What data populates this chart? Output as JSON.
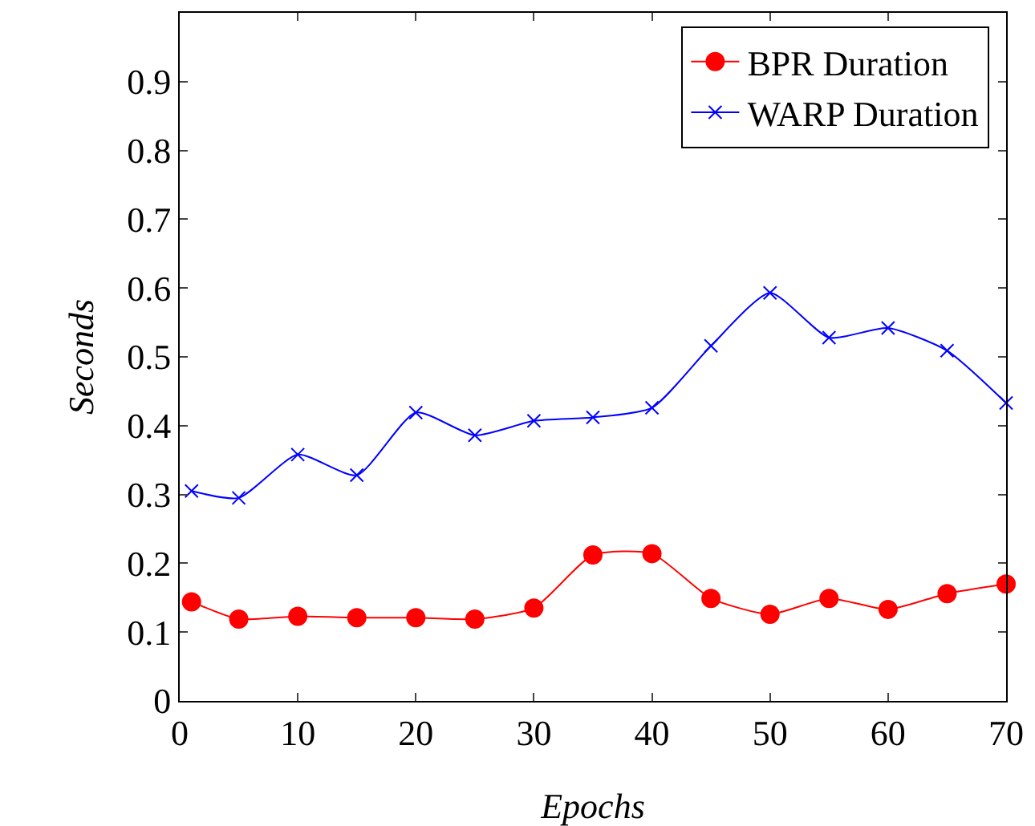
{
  "chart_data": {
    "type": "line",
    "xlabel": "Epochs",
    "ylabel": "Seconds",
    "x": [
      1,
      5,
      10,
      15,
      20,
      25,
      30,
      35,
      40,
      45,
      50,
      55,
      60,
      65,
      70
    ],
    "series": [
      {
        "name": "BPR Duration",
        "color": "#ff0000",
        "marker": "circle",
        "values": [
          0.144,
          0.119,
          0.123,
          0.121,
          0.121,
          0.119,
          0.135,
          0.212,
          0.214,
          0.149,
          0.126,
          0.149,
          0.133,
          0.156,
          0.17
        ]
      },
      {
        "name": "WARP Duration",
        "color": "#0000ff",
        "marker": "cross",
        "values": [
          0.305,
          0.295,
          0.358,
          0.328,
          0.419,
          0.386,
          0.407,
          0.412,
          0.426,
          0.516,
          0.593,
          0.528,
          0.542,
          0.509,
          0.433
        ]
      }
    ],
    "xlim": [
      0,
      70
    ],
    "xticks": [
      0,
      10,
      20,
      30,
      40,
      50,
      60,
      70
    ],
    "ylim": [
      0,
      1
    ],
    "yticks": [
      0,
      0.1,
      0.2,
      0.3,
      0.4,
      0.5,
      0.6,
      0.7,
      0.8,
      0.9
    ],
    "grid": false,
    "legend": "top right",
    "line_style": "solid"
  }
}
